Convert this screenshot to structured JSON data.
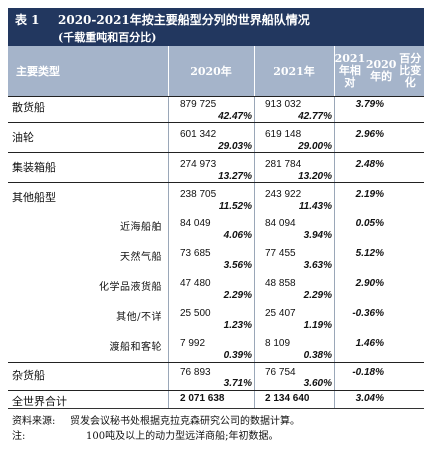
{
  "table": {
    "label": "表 1",
    "title": "2020-2021年按主要船型分列的世界船队情况",
    "subtitle": "(千载重吨和百分比)",
    "headers": {
      "category": "主要类型",
      "y2020": "2020年",
      "y2021": "2021年",
      "change": [
        "2021年相对",
        "2020年的",
        "百分比变化"
      ]
    },
    "rows": [
      {
        "name": "散货船",
        "v2020": "879 725",
        "s2020": "42.47%",
        "v2021": "913 032",
        "s2021": "42.77%",
        "change": "3.79%"
      },
      {
        "name": "油轮",
        "v2020": "601 342",
        "s2020": "29.03%",
        "v2021": "619 148",
        "s2021": "29.00%",
        "change": "2.96%"
      },
      {
        "name": "集装箱船",
        "v2020": "274 973",
        "s2020": "13.27%",
        "v2021": "281 784",
        "s2021": "13.20%",
        "change": "2.48%"
      },
      {
        "name": "其他船型",
        "v2020": "238 705",
        "s2020": "11.52%",
        "v2021": "243 922",
        "s2021": "11.43%",
        "change": "2.19%"
      },
      {
        "name": "近海船舶",
        "v2020": "84 049",
        "s2020": "4.06%",
        "v2021": "84 094",
        "s2021": "3.94%",
        "change": "0.05%"
      },
      {
        "name": "天然气船",
        "v2020": "73 685",
        "s2020": "3.56%",
        "v2021": "77 455",
        "s2021": "3.63%",
        "change": "5.12%"
      },
      {
        "name": "化学品液货船",
        "v2020": "47 480",
        "s2020": "2.29%",
        "v2021": "48 858",
        "s2021": "2.29%",
        "change": "2.90%"
      },
      {
        "name": "其他/不详",
        "v2020": "25 500",
        "s2020": "1.23%",
        "v2021": "25 407",
        "s2021": "1.19%",
        "change": "-0.36%"
      },
      {
        "name": "渡船和客轮",
        "v2020": "7 992",
        "s2020": "0.39%",
        "v2021": "8 109",
        "s2021": "0.38%",
        "change": "1.46%"
      },
      {
        "name": "杂货船",
        "v2020": "76 893",
        "s2020": "3.71%",
        "v2021": "76 754",
        "s2021": "3.60%",
        "change": "-0.18%"
      }
    ],
    "total": {
      "name": "全世界合计",
      "v2020": "2 071 638",
      "v2021": "2 134 640",
      "change": "3.04%"
    }
  },
  "footnotes": {
    "source_label": "资料来源:",
    "source_text": "贸发会议秘书处根据克拉克森研究公司的数据计算。",
    "note_label": "注:",
    "note_text": "100吨及以上的动力型远洋商船;年初数据。"
  }
}
